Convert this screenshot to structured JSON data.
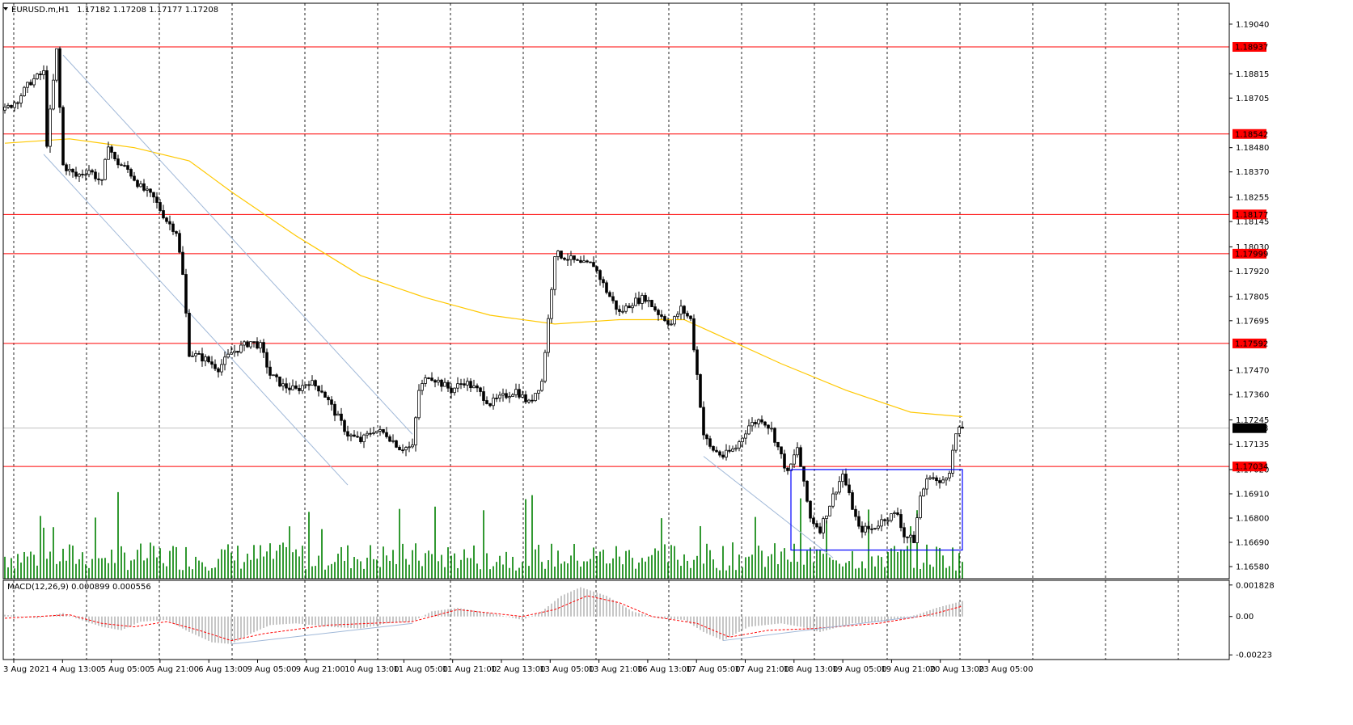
{
  "header": {
    "symbol": "EURUSD.m,H1",
    "ohlc": "1.17182 1.17208 1.17177 1.17208"
  },
  "macd_header": "MACD(12,26,9) 0.000899 0.000556",
  "colors": {
    "background": "#ffffff",
    "axis": "#000000",
    "grid": "#000000",
    "level": "#ff0000",
    "ma": "#ffc800",
    "volume": "#008000",
    "box": "#0000ff",
    "channel": "#a0b8d8",
    "macd_hist": "#c0c0c0",
    "macd_signal": "#ff0000",
    "price_label_bg": "#000000"
  },
  "chart_data": [
    {
      "type": "candlestick",
      "title": "",
      "xlabel": "",
      "ylabel": "",
      "ylim": [
        1.16525,
        1.19135
      ],
      "grid": "vertical dashed",
      "time_labels": [
        "3 Aug 2021",
        "4 Aug 13:00",
        "5 Aug 05:00",
        "5 Aug 21:00",
        "6 Aug 13:00",
        "9 Aug 05:00",
        "9 Aug 21:00",
        "10 Aug 13:00",
        "11 Aug 05:00",
        "11 Aug 21:00",
        "12 Aug 13:00",
        "13 Aug 05:00",
        "13 Aug 21:00",
        "16 Aug 13:00",
        "17 Aug 05:00",
        "17 Aug 21:00",
        "18 Aug 13:00",
        "19 Aug 05:00",
        "19 Aug 21:00",
        "20 Aug 13:00",
        "23 Aug 05:00"
      ],
      "price_ticks": [
        "1.19040",
        "1.18815",
        "1.18705",
        "1.18480",
        "1.18370",
        "1.18255",
        "1.18145",
        "1.18030",
        "1.17920",
        "1.17805",
        "1.17695",
        "1.17470",
        "1.17360",
        "1.17245",
        "1.17135",
        "1.17020",
        "1.16910",
        "1.16800",
        "1.16690",
        "1.16580"
      ],
      "levels": [
        "1.18937",
        "1.18542",
        "1.18177",
        "1.17999",
        "1.17592",
        "1.17034"
      ],
      "current_price": "1.17208",
      "anchors": [
        [
          0,
          1.1865
        ],
        [
          4,
          1.187
        ],
        [
          8,
          1.1878
        ],
        [
          12,
          1.1882
        ],
        [
          13,
          1.185
        ],
        [
          16,
          1.1892
        ],
        [
          18,
          1.184
        ],
        [
          22,
          1.1835
        ],
        [
          26,
          1.1838
        ],
        [
          30,
          1.1832
        ],
        [
          32,
          1.185
        ],
        [
          34,
          1.1842
        ],
        [
          38,
          1.1838
        ],
        [
          42,
          1.183
        ],
        [
          46,
          1.1825
        ],
        [
          50,
          1.1815
        ],
        [
          53,
          1.181
        ],
        [
          55,
          1.179
        ],
        [
          57,
          1.1755
        ],
        [
          62,
          1.1752
        ],
        [
          66,
          1.1748
        ],
        [
          70,
          1.1755
        ],
        [
          76,
          1.176
        ],
        [
          79,
          1.1758
        ],
        [
          82,
          1.1745
        ],
        [
          86,
          1.174
        ],
        [
          90,
          1.1738
        ],
        [
          94,
          1.1742
        ],
        [
          98,
          1.1738
        ],
        [
          102,
          1.1728
        ],
        [
          106,
          1.1718
        ],
        [
          110,
          1.1715
        ],
        [
          114,
          1.172
        ],
        [
          118,
          1.1718
        ],
        [
          122,
          1.1712
        ],
        [
          126,
          1.1712
        ],
        [
          128,
          1.1738
        ],
        [
          131,
          1.1745
        ],
        [
          134,
          1.1742
        ],
        [
          138,
          1.1738
        ],
        [
          142,
          1.1742
        ],
        [
          146,
          1.1738
        ],
        [
          150,
          1.1732
        ],
        [
          154,
          1.1735
        ],
        [
          158,
          1.1738
        ],
        [
          162,
          1.1732
        ],
        [
          166,
          1.1742
        ],
        [
          168,
          1.177
        ],
        [
          170,
          1.18
        ],
        [
          174,
          1.1798
        ],
        [
          178,
          1.1795
        ],
        [
          182,
          1.1795
        ],
        [
          186,
          1.1783
        ],
        [
          190,
          1.1773
        ],
        [
          194,
          1.1778
        ],
        [
          198,
          1.178
        ],
        [
          202,
          1.1773
        ],
        [
          206,
          1.1768
        ],
        [
          209,
          1.1775
        ],
        [
          212,
          1.177
        ],
        [
          214,
          1.1745
        ],
        [
          216,
          1.1718
        ],
        [
          218,
          1.1712
        ],
        [
          222,
          1.1708
        ],
        [
          226,
          1.1712
        ],
        [
          230,
          1.1722
        ],
        [
          234,
          1.1725
        ],
        [
          237,
          1.172
        ],
        [
          240,
          1.1708
        ],
        [
          242,
          1.17
        ],
        [
          245,
          1.1712
        ],
        [
          247,
          1.1695
        ],
        [
          249,
          1.168
        ],
        [
          252,
          1.1675
        ],
        [
          256,
          1.169
        ],
        [
          259,
          1.17
        ],
        [
          262,
          1.1685
        ],
        [
          264,
          1.1675
        ],
        [
          268,
          1.1675
        ],
        [
          272,
          1.168
        ],
        [
          276,
          1.1682
        ],
        [
          278,
          1.1672
        ],
        [
          281,
          1.167
        ],
        [
          283,
          1.169
        ],
        [
          286,
          1.17
        ],
        [
          289,
          1.1695
        ],
        [
          292,
          1.1702
        ],
        [
          294,
          1.1718
        ],
        [
          296,
          1.1721
        ]
      ],
      "moving_average": [
        [
          0,
          1.185
        ],
        [
          20,
          1.1852
        ],
        [
          40,
          1.1848
        ],
        [
          57,
          1.1842
        ],
        [
          70,
          1.1828
        ],
        [
          90,
          1.1808
        ],
        [
          110,
          1.179
        ],
        [
          130,
          1.178
        ],
        [
          150,
          1.1772
        ],
        [
          170,
          1.1768
        ],
        [
          190,
          1.177
        ],
        [
          210,
          1.177
        ],
        [
          225,
          1.176
        ],
        [
          240,
          1.175
        ],
        [
          260,
          1.1738
        ],
        [
          280,
          1.1728
        ],
        [
          296,
          1.1726
        ]
      ],
      "box": {
        "bar_start": 243,
        "bar_end": 296,
        "price_low": 1.16655,
        "price_high": 1.1702
      },
      "channel": [
        {
          "from": [
            18,
            1.189
          ],
          "to": [
            126,
            1.1718
          ]
        },
        {
          "from": [
            12,
            1.1845
          ],
          "to": [
            106,
            1.1695
          ]
        },
        {
          "from": [
            216,
            1.1708
          ],
          "to": [
            256,
            1.1662
          ]
        }
      ]
    },
    {
      "type": "macd",
      "ticks": [
        "0.001828",
        "0.00",
        "-0.00223"
      ],
      "ylim": [
        -0.0025,
        0.0021
      ],
      "histogram": [
        [
          0,
          0.0001
        ],
        [
          10,
          -0.0001
        ],
        [
          18,
          0.0002
        ],
        [
          22,
          -0.0001
        ],
        [
          30,
          -0.0006
        ],
        [
          36,
          -0.0008
        ],
        [
          42,
          -0.0003
        ],
        [
          50,
          -0.0002
        ],
        [
          57,
          -0.0009
        ],
        [
          64,
          -0.0015
        ],
        [
          70,
          -0.0016
        ],
        [
          76,
          -0.001
        ],
        [
          82,
          -0.0005
        ],
        [
          90,
          -0.0004
        ],
        [
          100,
          -0.0006
        ],
        [
          110,
          -0.0007
        ],
        [
          118,
          -0.0004
        ],
        [
          126,
          -0.0003
        ],
        [
          132,
          0.0003
        ],
        [
          140,
          0.0005
        ],
        [
          150,
          0.0002
        ],
        [
          160,
          -0.0002
        ],
        [
          166,
          0.0003
        ],
        [
          172,
          0.0012
        ],
        [
          178,
          0.0017
        ],
        [
          186,
          0.0012
        ],
        [
          194,
          0.0003
        ],
        [
          202,
          -0.0001
        ],
        [
          210,
          -0.0002
        ],
        [
          216,
          -0.0009
        ],
        [
          222,
          -0.0014
        ],
        [
          230,
          -0.0006
        ],
        [
          240,
          -0.0004
        ],
        [
          246,
          -0.0006
        ],
        [
          252,
          -0.0009
        ],
        [
          262,
          -0.0004
        ],
        [
          272,
          -0.0003
        ],
        [
          282,
          0.0001
        ],
        [
          288,
          0.0005
        ],
        [
          296,
          0.0009
        ]
      ],
      "signal": [
        [
          0,
          -0.0001
        ],
        [
          20,
          0.0001
        ],
        [
          30,
          -0.0004
        ],
        [
          40,
          -0.0006
        ],
        [
          50,
          -0.0003
        ],
        [
          60,
          -0.0008
        ],
        [
          70,
          -0.0014
        ],
        [
          80,
          -0.001
        ],
        [
          100,
          -0.0005
        ],
        [
          126,
          -0.0003
        ],
        [
          140,
          0.0004
        ],
        [
          160,
          0.0
        ],
        [
          170,
          0.0004
        ],
        [
          180,
          0.0012
        ],
        [
          190,
          0.0008
        ],
        [
          200,
          0.0
        ],
        [
          214,
          -0.0004
        ],
        [
          224,
          -0.0012
        ],
        [
          236,
          -0.0008
        ],
        [
          250,
          -0.0007
        ],
        [
          270,
          -0.0004
        ],
        [
          286,
          0.0001
        ],
        [
          296,
          0.0006
        ]
      ],
      "trendlines": [
        {
          "from": [
            70,
            -0.0016
          ],
          "to": [
            126,
            -0.0004
          ]
        },
        {
          "from": [
            222,
            -0.0014
          ],
          "to": [
            282,
            0.0
          ]
        }
      ]
    }
  ]
}
